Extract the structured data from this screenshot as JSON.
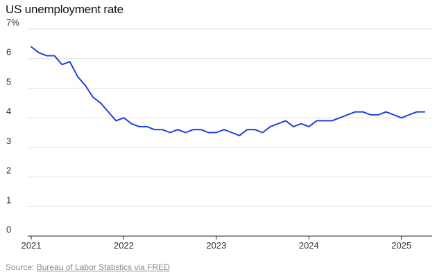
{
  "chart_data": {
    "type": "line",
    "title": "US unemployment rate",
    "xlabel": "",
    "ylabel": "",
    "ylim": [
      0,
      7
    ],
    "y_ticks": [
      {
        "value": 0,
        "label": "0"
      },
      {
        "value": 1,
        "label": "1"
      },
      {
        "value": 2,
        "label": "2"
      },
      {
        "value": 3,
        "label": "3"
      },
      {
        "value": 4,
        "label": "4"
      },
      {
        "value": 5,
        "label": "5"
      },
      {
        "value": 6,
        "label": "6"
      },
      {
        "value": 7,
        "label": "7%"
      }
    ],
    "x_ticks": [
      {
        "value": "2021-01",
        "label": "2021"
      },
      {
        "value": "2022-01",
        "label": "2022"
      },
      {
        "value": "2023-01",
        "label": "2023"
      },
      {
        "value": "2024-01",
        "label": "2024"
      },
      {
        "value": "2025-01",
        "label": "2025"
      }
    ],
    "xlim": [
      "2021-01",
      "2025-04"
    ],
    "grid": true,
    "series_color": "#1f3fe0",
    "series": [
      {
        "x": [
          "2021-01",
          "2021-02",
          "2021-03",
          "2021-04",
          "2021-05",
          "2021-06",
          "2021-07",
          "2021-08",
          "2021-09",
          "2021-10",
          "2021-11",
          "2021-12",
          "2022-01",
          "2022-02",
          "2022-03",
          "2022-04",
          "2022-05",
          "2022-06",
          "2022-07",
          "2022-08",
          "2022-09",
          "2022-10",
          "2022-11",
          "2022-12",
          "2023-01",
          "2023-02",
          "2023-03",
          "2023-04",
          "2023-05",
          "2023-06",
          "2023-07",
          "2023-08",
          "2023-09",
          "2023-10",
          "2023-11",
          "2023-12",
          "2024-01",
          "2024-02",
          "2024-03",
          "2024-04",
          "2024-05",
          "2024-06",
          "2024-07",
          "2024-08",
          "2024-09",
          "2024-10",
          "2024-11",
          "2024-12",
          "2025-01",
          "2025-02",
          "2025-03",
          "2025-04"
        ],
        "values": [
          6.4,
          6.2,
          6.1,
          6.1,
          5.8,
          5.9,
          5.4,
          5.1,
          4.7,
          4.5,
          4.2,
          3.9,
          4.0,
          3.8,
          3.7,
          3.7,
          3.6,
          3.6,
          3.5,
          3.6,
          3.5,
          3.6,
          3.6,
          3.5,
          3.5,
          3.6,
          3.5,
          3.4,
          3.6,
          3.6,
          3.5,
          3.7,
          3.8,
          3.9,
          3.7,
          3.8,
          3.7,
          3.9,
          3.9,
          3.9,
          4.0,
          4.1,
          4.2,
          4.2,
          4.1,
          4.1,
          4.2,
          4.1,
          4.0,
          4.1,
          4.2,
          4.2
        ]
      }
    ]
  },
  "source": {
    "prefix": "Source: ",
    "link_text": "Bureau of Labor Statistics via FRED"
  }
}
